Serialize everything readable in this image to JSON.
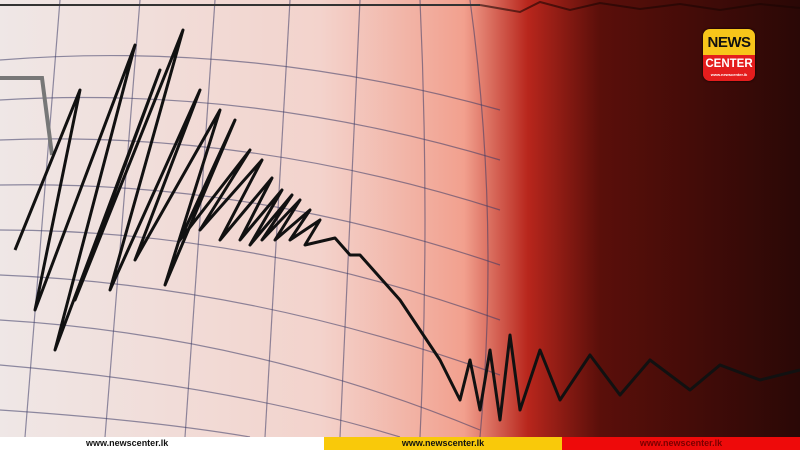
{
  "logo": {
    "line1": "NEWS",
    "line2": "CENTER",
    "url": "www.newscenter.lk"
  },
  "footer": {
    "items": [
      {
        "text": "www.newscenter.lk",
        "color": "#ffffff"
      },
      {
        "text": "www.newscenter.lk",
        "color": "#f9c90a"
      },
      {
        "text": "www.newscenter.lk",
        "color": "#ee0a0a"
      }
    ]
  },
  "colors": {
    "paper": "#f2e8e6",
    "glow": "#f0a090",
    "red": "#c02a20",
    "dark": "#2a0806",
    "trace": "#111111"
  }
}
